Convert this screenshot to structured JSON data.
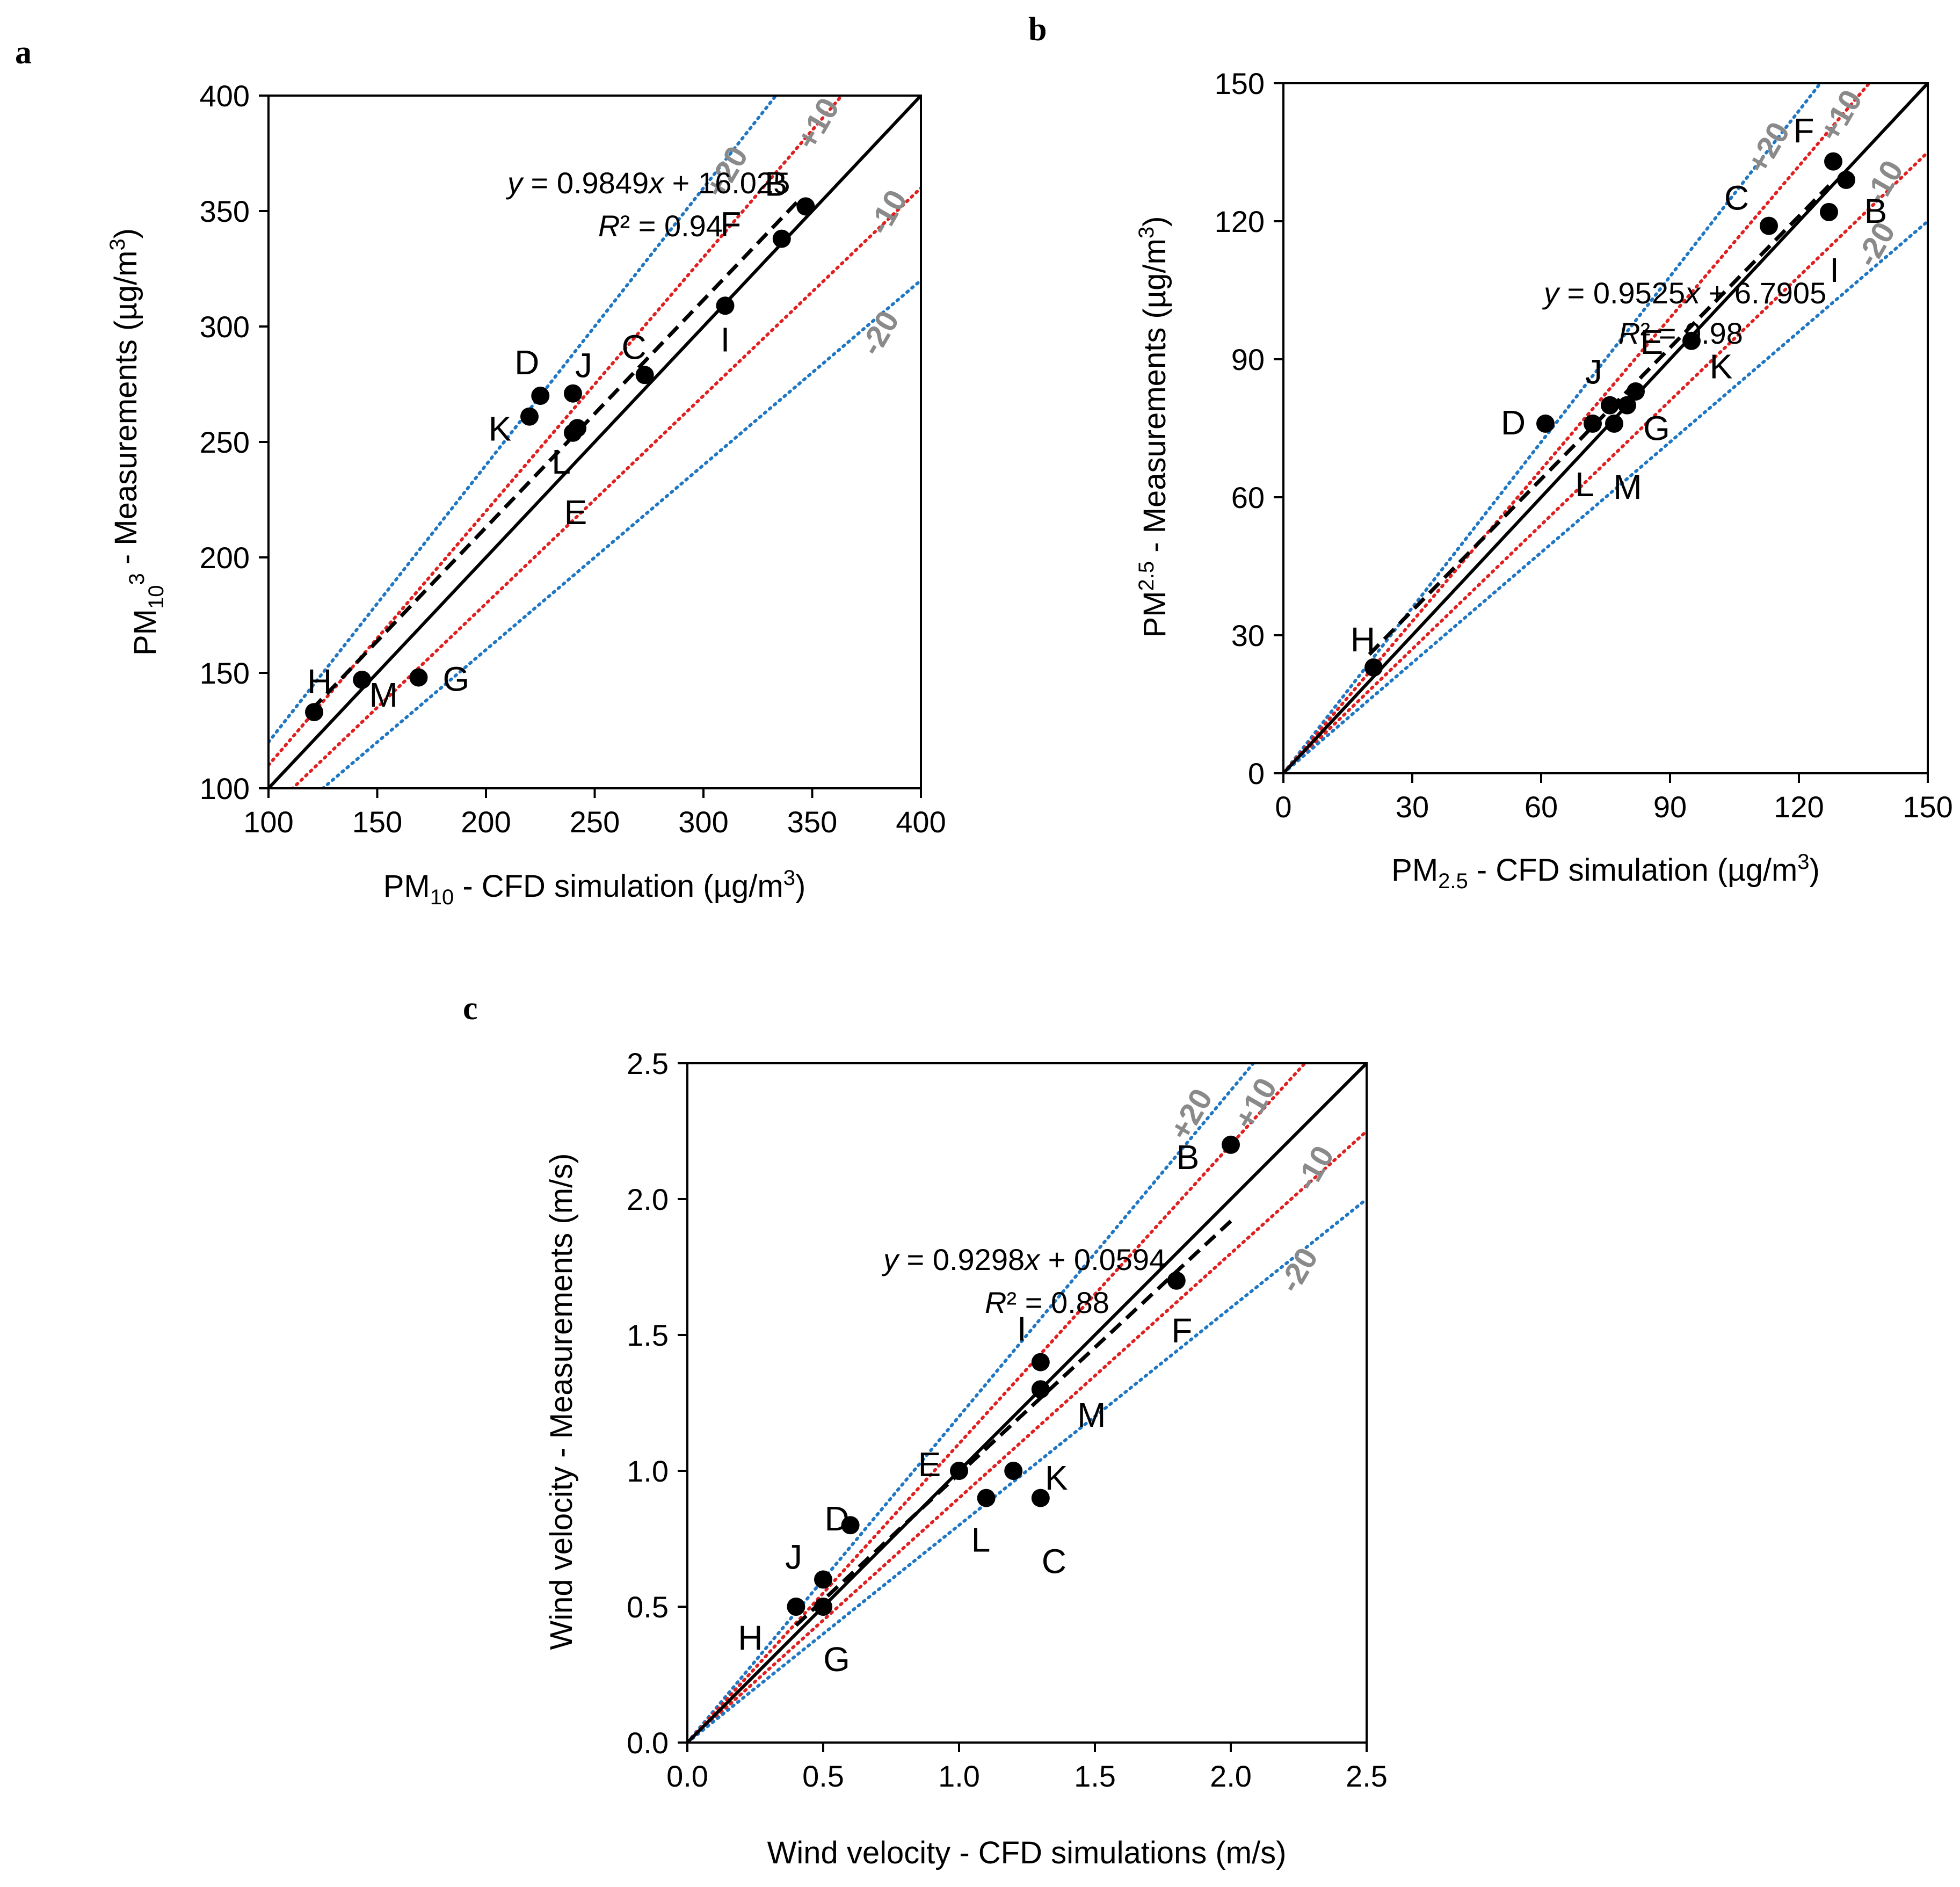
{
  "chart_data": [
    {
      "panel": "a",
      "type": "scatter",
      "ylabel": {
        "pre": "PM",
        "sub": "10",
        "post": " - Measurements (µg/m",
        "sup": "3",
        "end": ")"
      },
      "xlabel": {
        "pre": "PM",
        "sub": "10",
        "post": " - CFD simulation (µg/m",
        "sup": "3",
        "end": ")"
      },
      "xlim": [
        100,
        400
      ],
      "ylim": [
        100,
        400
      ],
      "xticks": [
        "100",
        "150",
        "200",
        "250",
        "300",
        "350",
        "400"
      ],
      "yticks": [
        "100",
        "150",
        "200",
        "250",
        "300",
        "350",
        "400"
      ],
      "regression": {
        "slope": 0.9849,
        "intercept": 16.025,
        "x_range": [
          120,
          345
        ]
      },
      "equation": {
        "y": "y",
        "mid": " = 0.9849",
        "x": "x",
        "end": " + 16.025"
      },
      "r2": {
        "r": "R",
        "end": "² = 0.94"
      },
      "bands": [
        {
          "label": "+20",
          "factor": 1.2,
          "color": "#1f77c4"
        },
        {
          "label": "+10",
          "factor": 1.1,
          "color": "#e02020"
        },
        {
          "label": "-10",
          "factor": 0.9,
          "color": "#e02020"
        },
        {
          "label": "-20",
          "factor": 0.8,
          "color": "#1f77c4"
        }
      ],
      "points": [
        {
          "label": "B",
          "x": 347,
          "y": 352
        },
        {
          "label": "F",
          "x": 336,
          "y": 338
        },
        {
          "label": "I",
          "x": 310,
          "y": 309
        },
        {
          "label": "C",
          "x": 273,
          "y": 279
        },
        {
          "label": "D",
          "x": 225,
          "y": 270
        },
        {
          "label": "J",
          "x": 240,
          "y": 271
        },
        {
          "label": "K",
          "x": 220,
          "y": 261
        },
        {
          "label": "L",
          "x": 242,
          "y": 256
        },
        {
          "label": "E",
          "x": 240,
          "y": 254
        },
        {
          "label": "H",
          "x": 121,
          "y": 133
        },
        {
          "label": "M",
          "x": 143,
          "y": 147
        },
        {
          "label": "G",
          "x": 169,
          "y": 148
        }
      ]
    },
    {
      "panel": "b",
      "type": "scatter",
      "ylabel": {
        "pre": "PM",
        "sup": "2.5",
        "post": " - Measurements (µg/m",
        "sup2": "3",
        "end": ")"
      },
      "xlabel": {
        "pre": "PM",
        "sub": "2.5",
        "post": " - CFD simulation (µg/m",
        "sup": "3",
        "end": ")"
      },
      "xlim": [
        0,
        150
      ],
      "ylim": [
        0,
        150
      ],
      "xticks": [
        "0",
        "30",
        "60",
        "90",
        "120",
        "150"
      ],
      "yticks": [
        "0",
        "30",
        "60",
        "90",
        "120",
        "150"
      ],
      "regression": {
        "slope": 0.9525,
        "intercept": 6.7905,
        "x_range": [
          20,
          127
        ]
      },
      "equation": {
        "y": "y",
        "mid": " = 0.9525",
        "x": "x",
        "end": " + 6.7905"
      },
      "r2": {
        "r": "R",
        "end": "² = 0.98"
      },
      "bands": [
        {
          "label": "+20",
          "factor": 1.2,
          "color": "#1f77c4"
        },
        {
          "label": "+10",
          "factor": 1.1,
          "color": "#e02020"
        },
        {
          "label": "-10",
          "factor": 0.9,
          "color": "#e02020"
        },
        {
          "label": "-20",
          "factor": 0.8,
          "color": "#1f77c4"
        }
      ],
      "points": [
        {
          "label": "F",
          "x": 128,
          "y": 133
        },
        {
          "label": "B",
          "x": 131,
          "y": 129
        },
        {
          "label": "I",
          "x": 127,
          "y": 122
        },
        {
          "label": "C",
          "x": 113,
          "y": 119
        },
        {
          "label": "K",
          "x": 95,
          "y": 94
        },
        {
          "label": "E",
          "x": 82,
          "y": 83
        },
        {
          "label": "J",
          "x": 76,
          "y": 80
        },
        {
          "label": "G",
          "x": 80,
          "y": 80
        },
        {
          "label": "D",
          "x": 61,
          "y": 76
        },
        {
          "label": "L",
          "x": 72,
          "y": 76
        },
        {
          "label": "M",
          "x": 77,
          "y": 76
        },
        {
          "label": "H",
          "x": 21,
          "y": 23
        }
      ]
    },
    {
      "panel": "c",
      "type": "scatter",
      "ylabel": {
        "post": "Wind velocity - Measurements (m/s)"
      },
      "xlabel": {
        "post": "Wind velocity - CFD simulations (m/s)"
      },
      "xlim": [
        0.0,
        2.5
      ],
      "ylim": [
        0.0,
        2.5
      ],
      "xticks": [
        "0.0",
        "0.5",
        "1.0",
        "1.5",
        "2.0",
        "2.5"
      ],
      "yticks": [
        "0.0",
        "0.5",
        "1.0",
        "1.5",
        "2.0",
        "2.5"
      ],
      "regression": {
        "slope": 0.9298,
        "intercept": 0.0594,
        "x_range": [
          0.4,
          2.0
        ]
      },
      "equation": {
        "y": "y",
        "mid": " = 0.9298",
        "x": "x",
        "end": " + 0.0594"
      },
      "r2": {
        "r": "R",
        "end": "² = 0.88"
      },
      "bands": [
        {
          "label": "+20",
          "factor": 1.2,
          "color": "#1f77c4"
        },
        {
          "label": "+10",
          "factor": 1.1,
          "color": "#e02020"
        },
        {
          "label": "-10",
          "factor": 0.9,
          "color": "#e02020"
        },
        {
          "label": "-20",
          "factor": 0.8,
          "color": "#1f77c4"
        }
      ],
      "points": [
        {
          "label": "B",
          "x": 2.0,
          "y": 2.2
        },
        {
          "label": "F",
          "x": 1.8,
          "y": 1.7
        },
        {
          "label": "I",
          "x": 1.3,
          "y": 1.4
        },
        {
          "label": "M",
          "x": 1.3,
          "y": 1.3
        },
        {
          "label": "E",
          "x": 1.0,
          "y": 1.0
        },
        {
          "label": "K",
          "x": 1.2,
          "y": 1.0
        },
        {
          "label": "L",
          "x": 1.1,
          "y": 0.9
        },
        {
          "label": "C",
          "x": 1.3,
          "y": 0.9
        },
        {
          "label": "D",
          "x": 0.6,
          "y": 0.8
        },
        {
          "label": "J",
          "x": 0.5,
          "y": 0.6
        },
        {
          "label": "H",
          "x": 0.4,
          "y": 0.5
        },
        {
          "label": "G",
          "x": 0.5,
          "y": 0.5
        }
      ]
    }
  ]
}
